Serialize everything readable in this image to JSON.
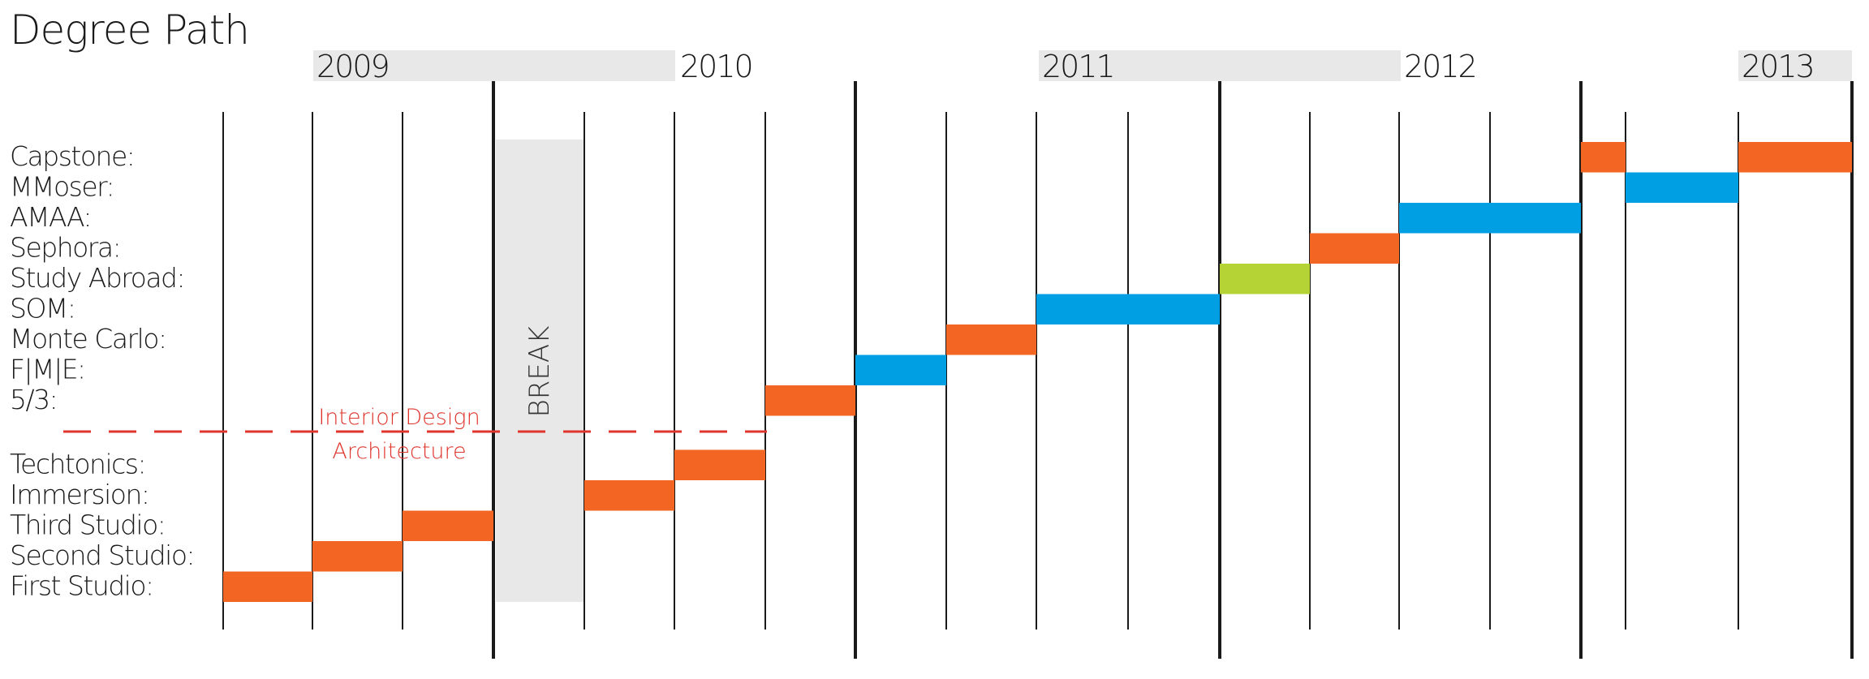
{
  "title": "Degree Path",
  "years": [
    "2009",
    "2010",
    "2011",
    "2012",
    "2013"
  ],
  "rows": [
    "Capstone:",
    "MMoser:",
    "AMAA:",
    "Sephora:",
    "Study Abroad:",
    "SOM:",
    "Monte Carlo:",
    "F|M|E:",
    "5/3:",
    "Techtonics:",
    "Immersion:",
    "Third Studio:",
    "Second Studio:",
    "First Studio:"
  ],
  "break_label": "BREAK",
  "divider_labels": {
    "upper": "Interior Design",
    "lower": "Architecture"
  },
  "colors": {
    "studio": "#f26522",
    "work": "#009fe3",
    "study_abroad": "#b5d334",
    "divider": "#e0352c",
    "year_band": "#e8e8e8",
    "break_block": "#e8e8e8",
    "grid": "#1a1a1a"
  },
  "bars": [
    {
      "label": "First Studio:",
      "color": "studio",
      "period": "2009-1"
    },
    {
      "label": "Second Studio:",
      "color": "studio",
      "period": "2009-2"
    },
    {
      "label": "Third Studio:",
      "color": "studio",
      "period": "2009-3"
    },
    {
      "label": "Immersion:",
      "color": "studio",
      "period": "2010-2"
    },
    {
      "label": "Techtonics:",
      "color": "studio",
      "period": "2010-3"
    },
    {
      "label": "5/3:",
      "color": "studio",
      "period": "2010-4"
    },
    {
      "label": "F|M|E:",
      "color": "work",
      "period": "2011-1"
    },
    {
      "label": "Monte Carlo:",
      "color": "studio",
      "period": "2011-2"
    },
    {
      "label": "SOM:",
      "color": "work",
      "period": "2011-3 to 2011-4"
    },
    {
      "label": "Study Abroad:",
      "color": "study_abroad",
      "period": "2012-1"
    },
    {
      "label": "Sephora:",
      "color": "studio",
      "period": "2012-2"
    },
    {
      "label": "AMAA:",
      "color": "work",
      "period": "2012-3 to 2012-4"
    },
    {
      "label": "Capstone:",
      "color": "studio",
      "period": "2013-1 (first half)"
    },
    {
      "label": "MMoser:",
      "color": "work",
      "period": "2013-1 (second half) to 2013-2"
    },
    {
      "label": "Capstone:",
      "color": "studio",
      "period": "2013-3"
    }
  ]
}
